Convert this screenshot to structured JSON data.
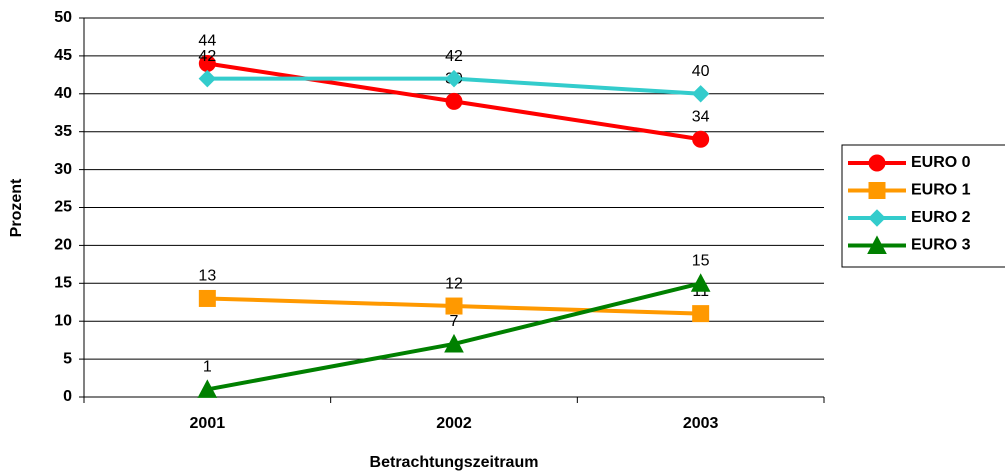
{
  "chart_data": {
    "type": "line",
    "categories": [
      "2001",
      "2002",
      "2003"
    ],
    "series": [
      {
        "name": "EURO 0",
        "color": "#ff0000",
        "marker": "circle",
        "values": [
          44,
          39,
          34
        ]
      },
      {
        "name": "EURO 1",
        "color": "#ff9900",
        "marker": "square",
        "values": [
          13,
          12,
          11
        ]
      },
      {
        "name": "EURO 2",
        "color": "#33cccc",
        "marker": "diamond",
        "values": [
          42,
          42,
          40
        ]
      },
      {
        "name": "EURO 3",
        "color": "#008000",
        "marker": "triangle",
        "values": [
          1,
          7,
          15
        ]
      }
    ],
    "ylim": [
      0,
      50
    ],
    "yticks": [
      0,
      5,
      10,
      15,
      20,
      25,
      30,
      35,
      40,
      45,
      50
    ],
    "grid": true,
    "legend": "right",
    "xlabel": "Betrachtungszeitraum",
    "ylabel": "Prozent"
  }
}
